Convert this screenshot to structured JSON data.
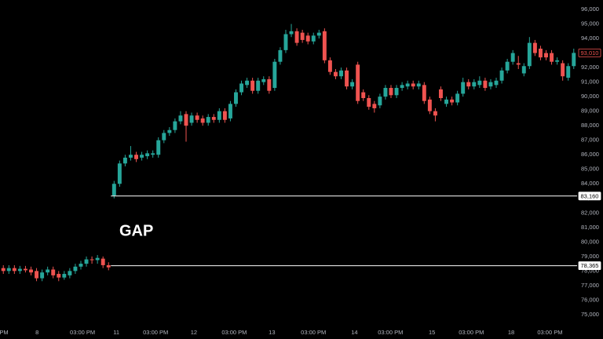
{
  "chart_data": {
    "type": "candlestick",
    "annotation": "GAP",
    "up_color": "#26a69a",
    "down_color": "#ef5350",
    "x": [
      0,
      1,
      2,
      3,
      4,
      5,
      6,
      7,
      8,
      9,
      10,
      11,
      12,
      13,
      14,
      15,
      16,
      17,
      18,
      19,
      20,
      21,
      22,
      23,
      24,
      25,
      26,
      27,
      28,
      29,
      30,
      31,
      32,
      33,
      34,
      35,
      36,
      37,
      38,
      39,
      40,
      41,
      42,
      43,
      44,
      45,
      46,
      47,
      48,
      49,
      50,
      51,
      52,
      53,
      54,
      55,
      56,
      57,
      58,
      59,
      60,
      61,
      62,
      63,
      64,
      65,
      66,
      67,
      68,
      69,
      70,
      71,
      72,
      73,
      74,
      75,
      76,
      77,
      78,
      79,
      80,
      81,
      82,
      83,
      84,
      85,
      86,
      87,
      88,
      89,
      90,
      91,
      92,
      93,
      94,
      95,
      96,
      97,
      98,
      99,
      100,
      101,
      102,
      103
    ],
    "open": [
      78200,
      78000,
      78200,
      78000,
      78150,
      78100,
      78000,
      77500,
      77900,
      78100,
      77800,
      77550,
      77700,
      78000,
      78300,
      78500,
      78800,
      78750,
      78850,
      78400,
      83200,
      84000,
      85400,
      85800,
      86000,
      85800,
      85900,
      86000,
      86000,
      87000,
      87500,
      87700,
      88300,
      88800,
      88200,
      88700,
      88500,
      88200,
      88600,
      88400,
      89000,
      88500,
      89500,
      90300,
      90800,
      91100,
      90400,
      91000,
      91200,
      90600,
      92400,
      93200,
      94300,
      94500,
      94400,
      94200,
      93800,
      94200,
      94500,
      92500,
      91700,
      91400,
      91800,
      90700,
      92200,
      90300,
      89900,
      89500,
      89400,
      90000,
      90600,
      90100,
      90600,
      90700,
      90900,
      90700,
      90800,
      89800,
      89000,
      90500,
      89500,
      89800,
      89600,
      90200,
      91000,
      90700,
      90800,
      91100,
      90700,
      90800,
      91100,
      91800,
      92400,
      92300,
      91600,
      92100,
      93700,
      93300,
      93000,
      93000,
      92400,
      92300,
      91300,
      92100
    ],
    "high": [
      78400,
      78400,
      78400,
      78350,
      78350,
      78300,
      78200,
      78100,
      78300,
      78300,
      78000,
      78000,
      78200,
      78500,
      78700,
      79000,
      79000,
      79100,
      79000,
      78600,
      84200,
      85600,
      86000,
      86600,
      86200,
      86200,
      86300,
      86300,
      87200,
      87700,
      87900,
      88500,
      89000,
      89000,
      88900,
      88900,
      88700,
      88800,
      88800,
      89200,
      89200,
      89700,
      90500,
      91100,
      91300,
      91300,
      91300,
      91400,
      91400,
      92600,
      93400,
      94600,
      95000,
      94700,
      94600,
      94400,
      94400,
      94600,
      94700,
      92700,
      91900,
      92000,
      92000,
      91200,
      92400,
      90500,
      90100,
      89700,
      90200,
      90800,
      90800,
      90800,
      91000,
      91100,
      91100,
      91100,
      91000,
      90000,
      89200,
      90700,
      90000,
      90000,
      90400,
      91300,
      91200,
      91200,
      91400,
      91300,
      91200,
      91300,
      92000,
      92600,
      93200,
      92800,
      92300,
      94100,
      93900,
      93500,
      93200,
      93200,
      92700,
      92500,
      92300,
      93300
    ],
    "low": [
      77800,
      77800,
      77800,
      77800,
      77900,
      77700,
      77300,
      77300,
      77700,
      77500,
      77300,
      77400,
      77500,
      77800,
      78100,
      78300,
      78500,
      78500,
      78200,
      78050,
      83000,
      83800,
      85200,
      85600,
      85500,
      85600,
      85700,
      85800,
      85800,
      86800,
      87300,
      87500,
      88100,
      86900,
      88000,
      88200,
      88000,
      88000,
      88200,
      88200,
      88200,
      88300,
      89300,
      90100,
      90600,
      90200,
      90200,
      90800,
      90200,
      90400,
      92200,
      93000,
      94100,
      93500,
      93700,
      93600,
      93600,
      94000,
      92300,
      91500,
      91200,
      91200,
      90500,
      90500,
      89500,
      89700,
      89100,
      88900,
      89200,
      89800,
      89900,
      89900,
      90400,
      90500,
      90500,
      90500,
      89500,
      88800,
      88300,
      89700,
      89300,
      89400,
      89400,
      90000,
      90500,
      90500,
      90600,
      90400,
      90500,
      90600,
      90900,
      91600,
      92200,
      91900,
      91400,
      91900,
      92800,
      92500,
      92500,
      92200,
      92200,
      91100,
      91100,
      91900
    ],
    "close": [
      78000,
      78200,
      78000,
      78150,
      78050,
      77900,
      77500,
      77900,
      78100,
      77700,
      77550,
      77800,
      78000,
      78300,
      78500,
      78800,
      78750,
      78900,
      78400,
      78250,
      84000,
      85400,
      85800,
      86000,
      85700,
      86000,
      86100,
      86100,
      87000,
      87500,
      87700,
      88300,
      88700,
      88000,
      88700,
      88400,
      88200,
      88600,
      88400,
      89000,
      88400,
      89500,
      90300,
      90900,
      91100,
      90400,
      91100,
      91200,
      90400,
      92400,
      93200,
      94300,
      94500,
      93700,
      93900,
      93800,
      94200,
      94400,
      92500,
      91700,
      91400,
      91800,
      90700,
      91000,
      89700,
      89900,
      89300,
      89200,
      90000,
      90600,
      90100,
      90600,
      90800,
      90900,
      90700,
      90900,
      89700,
      89000,
      88700,
      89900,
      89800,
      89600,
      90200,
      91000,
      90700,
      91000,
      91100,
      90600,
      91000,
      91100,
      91800,
      92400,
      93000,
      92200,
      92100,
      93700,
      93000,
      92700,
      92700,
      92400,
      92500,
      91400,
      92100,
      93010
    ],
    "xlim": [
      -0.6,
      103.6
    ],
    "xticks": [
      {
        "value": 0.1,
        "label": "PM"
      },
      {
        "value": 6.1,
        "label": "8"
      },
      {
        "value": 14.3,
        "label": "03:00 PM"
      },
      {
        "value": 20.4,
        "label": "11"
      },
      {
        "value": 27.5,
        "label": "03:00 PM"
      },
      {
        "value": 34.4,
        "label": "12"
      },
      {
        "value": 41.7,
        "label": "03:00 PM"
      },
      {
        "value": 48.5,
        "label": "13"
      },
      {
        "value": 56,
        "label": "03:00 PM"
      },
      {
        "value": 63.4,
        "label": "14"
      },
      {
        "value": 69.9,
        "label": "03:00 PM"
      },
      {
        "value": 77.4,
        "label": "15"
      },
      {
        "value": 84.5,
        "label": "03:00 PM"
      },
      {
        "value": 91.7,
        "label": "18"
      },
      {
        "value": 98.7,
        "label": "03:00 PM"
      }
    ],
    "ylim": [
      74400,
      96650
    ],
    "yticks": [
      {
        "value": 75000,
        "label": "75,000"
      },
      {
        "value": 76000,
        "label": "76,000"
      },
      {
        "value": 77000,
        "label": "77,000"
      },
      {
        "value": 78000,
        "label": "78,000"
      },
      {
        "value": 79000,
        "label": "79,000"
      },
      {
        "value": 80000,
        "label": "80,000"
      },
      {
        "value": 81000,
        "label": "81,000"
      },
      {
        "value": 82000,
        "label": "82,000"
      },
      {
        "value": 83000,
        "label": "83,000"
      },
      {
        "value": 84000,
        "label": "84,000"
      },
      {
        "value": 85000,
        "label": "85,000"
      },
      {
        "value": 86000,
        "label": "86,000"
      },
      {
        "value": 87000,
        "label": "87,000"
      },
      {
        "value": 88000,
        "label": "88,000"
      },
      {
        "value": 89000,
        "label": "89,000"
      },
      {
        "value": 90000,
        "label": "90,000"
      },
      {
        "value": 91000,
        "label": "91,000"
      },
      {
        "value": 92000,
        "label": "92,000"
      },
      {
        "value": 93000,
        "label": "93,000"
      },
      {
        "value": 94000,
        "label": "94,000"
      },
      {
        "value": 95000,
        "label": "95,000"
      },
      {
        "value": 96000,
        "label": "96,000"
      }
    ],
    "levels": [
      {
        "value": 83160,
        "label": "83,160",
        "color": "#ffffff"
      },
      {
        "value": 78365,
        "label": "78,365",
        "color": "#ffffff"
      }
    ],
    "last_price": {
      "value": 93010,
      "label": "93,010",
      "color": "#ef5350"
    }
  }
}
